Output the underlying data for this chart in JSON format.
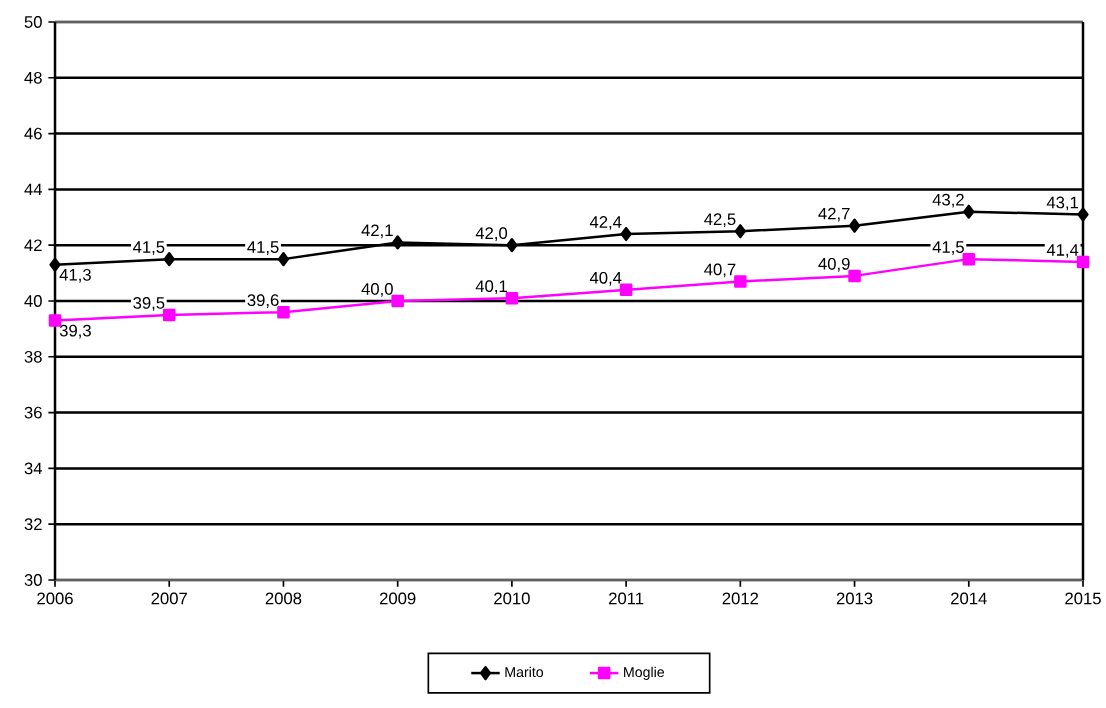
{
  "chart_data": {
    "type": "line",
    "x": [
      2006,
      2007,
      2008,
      2009,
      2010,
      2011,
      2012,
      2013,
      2014,
      2015
    ],
    "xlim": [
      2006,
      2015
    ],
    "xticks": [
      2006,
      2007,
      2008,
      2009,
      2010,
      2011,
      2012,
      2013,
      2014,
      2015
    ],
    "ylim": [
      30,
      50
    ],
    "yticks": [
      30,
      32,
      34,
      36,
      38,
      40,
      42,
      44,
      46,
      48,
      50
    ],
    "grid": "y",
    "legend": "bottom",
    "line_style": "solid",
    "series": [
      {
        "name": "Marito",
        "color": "#000000",
        "marker": "diamond",
        "values": [
          41.3,
          41.5,
          41.5,
          42.1,
          42.0,
          42.4,
          42.5,
          42.7,
          43.2,
          43.1
        ],
        "value_labels": [
          "41,3",
          "41,5",
          "41,5",
          "42,1",
          "42,0",
          "42,4",
          "42,5",
          "42,7",
          "43,2",
          "43,1"
        ]
      },
      {
        "name": "Moglie",
        "color": "#ff00ff",
        "marker": "square",
        "values": [
          39.3,
          39.5,
          39.6,
          40.0,
          40.1,
          40.4,
          40.7,
          40.9,
          41.5,
          41.4
        ],
        "value_labels": [
          "39,3",
          "39,5",
          "39,6",
          "40,0",
          "40,1",
          "40,4",
          "40,7",
          "40,9",
          "41,5",
          "41,4"
        ]
      }
    ]
  }
}
